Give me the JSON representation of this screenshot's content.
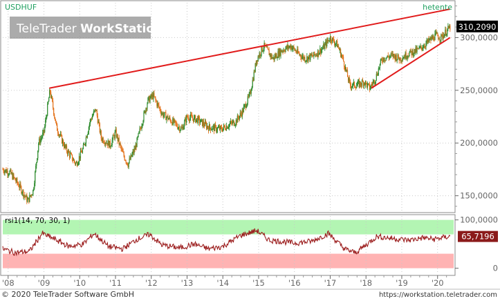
{
  "header": {
    "symbol": "USDHUF",
    "period": "hetente",
    "watermark_light": "TeleTrader ",
    "watermark_bold": "WorkStation"
  },
  "footer": {
    "copyright": "© 2020 TeleTrader Software GmbH",
    "url": "https://workstation.teletrader.com"
  },
  "colors": {
    "up_candle": "#2e8b2e",
    "down_candle": "#e3731c",
    "trendline": "#e11b1b",
    "rsi_line": "#9b1c1c",
    "overbought_band": "#b3f5b3",
    "oversold_band": "#ffb3b3",
    "grid": "#c8c8c8",
    "price_label_bg": "#000000",
    "rsi_label_bg": "#8b1a1a"
  },
  "chart_data": [
    {
      "type": "candlestick",
      "title": "USDHUF",
      "interval": "hetente",
      "last_value_label": "310,2090",
      "y_ticks": [
        "150,0000",
        "200,0000",
        "250,0000",
        "300,0000"
      ],
      "y_tick_values": [
        150,
        200,
        250,
        300
      ],
      "ylim": [
        136,
        333
      ],
      "x_ticks": [
        "'08",
        "'09",
        "'10",
        "'11",
        "'12",
        "'13",
        "'14",
        "'15",
        "'16",
        "'17",
        "'18",
        "'19",
        "'20"
      ],
      "x_tick_values": [
        2008,
        2009,
        2010,
        2011,
        2012,
        2013,
        2014,
        2015,
        2016,
        2017,
        2018,
        2019,
        2020
      ],
      "xlim": [
        2007.85,
        2020.45
      ],
      "grid": true,
      "anchors": [
        [
          2007.85,
          175
        ],
        [
          2008.05,
          172
        ],
        [
          2008.3,
          160
        ],
        [
          2008.55,
          145
        ],
        [
          2008.7,
          155
        ],
        [
          2008.85,
          200
        ],
        [
          2009.0,
          210
        ],
        [
          2009.17,
          250
        ],
        [
          2009.35,
          215
        ],
        [
          2009.6,
          195
        ],
        [
          2009.9,
          180
        ],
        [
          2010.1,
          195
        ],
        [
          2010.3,
          222
        ],
        [
          2010.45,
          232
        ],
        [
          2010.6,
          205
        ],
        [
          2010.85,
          198
        ],
        [
          2011.0,
          210
        ],
        [
          2011.2,
          190
        ],
        [
          2011.35,
          180
        ],
        [
          2011.55,
          195
        ],
        [
          2011.9,
          240
        ],
        [
          2012.05,
          245
        ],
        [
          2012.3,
          228
        ],
        [
          2012.6,
          220
        ],
        [
          2012.85,
          213
        ],
        [
          2013.0,
          225
        ],
        [
          2013.3,
          222
        ],
        [
          2013.6,
          215
        ],
        [
          2013.95,
          213
        ],
        [
          2014.2,
          218
        ],
        [
          2014.35,
          220
        ],
        [
          2014.55,
          230
        ],
        [
          2014.75,
          245
        ],
        [
          2014.95,
          280
        ],
        [
          2015.15,
          292
        ],
        [
          2015.4,
          280
        ],
        [
          2015.65,
          288
        ],
        [
          2015.9,
          292
        ],
        [
          2016.1,
          285
        ],
        [
          2016.3,
          280
        ],
        [
          2016.55,
          283
        ],
        [
          2016.8,
          290
        ],
        [
          2017.0,
          300
        ],
        [
          2017.2,
          293
        ],
        [
          2017.35,
          280
        ],
        [
          2017.55,
          255
        ],
        [
          2017.75,
          255
        ],
        [
          2017.95,
          258
        ],
        [
          2018.1,
          252
        ],
        [
          2018.25,
          260
        ],
        [
          2018.45,
          280
        ],
        [
          2018.75,
          283
        ],
        [
          2018.95,
          280
        ],
        [
          2019.2,
          285
        ],
        [
          2019.45,
          288
        ],
        [
          2019.7,
          295
        ],
        [
          2019.95,
          302
        ],
        [
          2020.1,
          300
        ],
        [
          2020.35,
          310
        ]
      ],
      "trendlines": [
        {
          "x1": 2009.15,
          "y1": 252,
          "x2": 2020.35,
          "y2": 327
        },
        {
          "x1": 2018.15,
          "y1": 252,
          "x2": 2020.35,
          "y2": 300
        }
      ]
    },
    {
      "type": "line",
      "title": "rsi1(14, 70, 30, 1)",
      "last_value_label": "65,7196",
      "y_ticks": [
        "0",
        "100,0000"
      ],
      "y_tick_values": [
        0,
        100
      ],
      "ylim": [
        -12,
        108
      ],
      "overbought": 70,
      "oversold": 30,
      "anchors": [
        [
          2007.85,
          40
        ],
        [
          2008.2,
          32
        ],
        [
          2008.6,
          35
        ],
        [
          2008.95,
          72
        ],
        [
          2009.3,
          60
        ],
        [
          2009.7,
          45
        ],
        [
          2010.1,
          50
        ],
        [
          2010.4,
          72
        ],
        [
          2010.8,
          45
        ],
        [
          2011.2,
          40
        ],
        [
          2011.6,
          60
        ],
        [
          2011.95,
          70
        ],
        [
          2012.3,
          48
        ],
        [
          2012.8,
          42
        ],
        [
          2013.2,
          50
        ],
        [
          2013.6,
          40
        ],
        [
          2014.0,
          45
        ],
        [
          2014.5,
          68
        ],
        [
          2014.95,
          78
        ],
        [
          2015.3,
          58
        ],
        [
          2015.7,
          55
        ],
        [
          2016.0,
          52
        ],
        [
          2016.5,
          56
        ],
        [
          2016.95,
          72
        ],
        [
          2017.4,
          40
        ],
        [
          2017.7,
          32
        ],
        [
          2018.0,
          48
        ],
        [
          2018.3,
          66
        ],
        [
          2018.7,
          62
        ],
        [
          2019.2,
          58
        ],
        [
          2019.6,
          63
        ],
        [
          2019.9,
          60
        ],
        [
          2020.35,
          66
        ]
      ]
    }
  ]
}
